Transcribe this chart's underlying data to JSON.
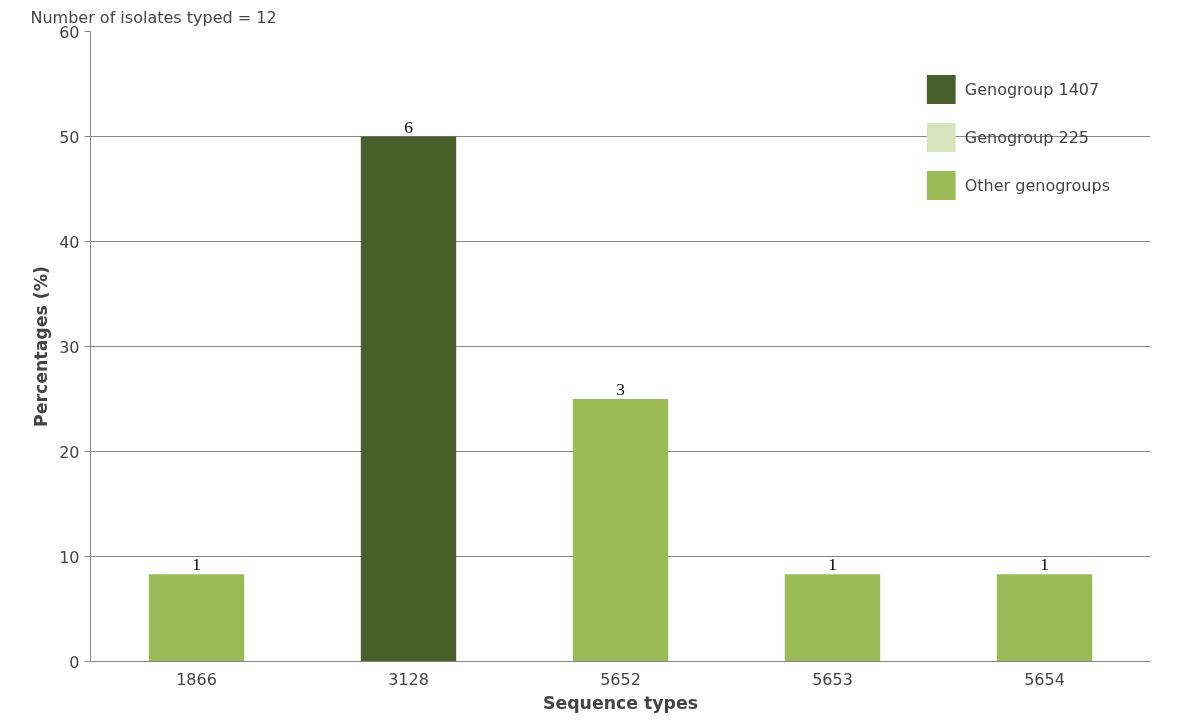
{
  "chart_data": {
    "type": "bar",
    "xlabel": "Sequence types",
    "ylabel": "Percentages (%)",
    "annotations": [
      "Number of isolates typed = 12",
      {
        "text": "1",
        "x": "1866",
        "y": 8.3
      },
      {
        "text": "6",
        "x": "3128",
        "y": 50
      },
      {
        "text": "3",
        "x": "5652",
        "y": 25
      },
      {
        "text": "1",
        "x": "5653",
        "y": 8.3
      },
      {
        "text": "1",
        "x": "5654",
        "y": 8.3
      }
    ],
    "categories": [
      "1866",
      "3128",
      "5652",
      "5653",
      "5654"
    ],
    "series": [
      {
        "name": "Genogroup 1407",
        "color": "#475f2a",
        "values": [
          null,
          50,
          null,
          null,
          null
        ]
      },
      {
        "name": "Genogroup 225",
        "color": "#d7e4bd",
        "values": [
          null,
          null,
          null,
          null,
          null
        ]
      },
      {
        "name": "Other genogroups",
        "color": "#9bbb59",
        "values": [
          8.3,
          null,
          25,
          8.3,
          8.3
        ]
      }
    ],
    "ylim": [
      0,
      60
    ],
    "yticks": [
      0,
      10,
      20,
      30,
      40,
      50,
      60
    ],
    "grid": "y",
    "legend": "top right"
  }
}
